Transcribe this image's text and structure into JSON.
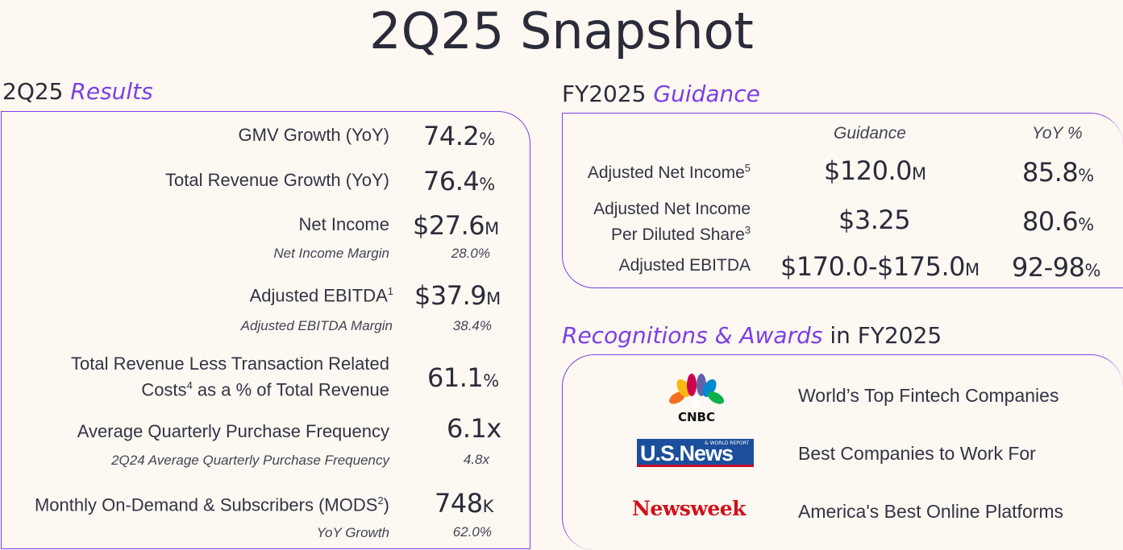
{
  "title": "2Q25 Snapshot",
  "results": {
    "heading_prefix": "2Q25",
    "heading_accent": "Results",
    "gmv_label": "GMV Growth (YoY)",
    "gmv_value": "74.2",
    "gmv_unit": "%",
    "rev_label": "Total Revenue Growth (YoY)",
    "rev_value": "76.4",
    "rev_unit": "%",
    "ni_label": "Net Income",
    "ni_value": "$27.6",
    "ni_unit": "M",
    "nim_label": "Net Income Margin",
    "nim_value": "28.0%",
    "ebitda_label": "Adjusted EBITDA",
    "ebitda_sup": "1",
    "ebitda_value": "$37.9",
    "ebitda_unit": "M",
    "ebitdam_label": "Adjusted EBITDA Margin",
    "ebitdam_value": "38.4%",
    "trl_label_1": "Total Revenue Less Transaction Related",
    "trl_label_2a": "Costs",
    "trl_sup": "4",
    "trl_label_2b": " as a % of Total Revenue",
    "trl_value": "61.1",
    "trl_unit": "%",
    "aqpf_label": "Average Quarterly Purchase Frequency",
    "aqpf_value": "6.1x",
    "aqpf_prev_label": "2Q24 Average Quarterly Purchase Frequency",
    "aqpf_prev_value": "4.8x",
    "mods_label": "Monthly On-Demand & Subscribers (MODS",
    "mods_sup": "2",
    "mods_label_end": ")",
    "mods_value": "748",
    "mods_unit": "K",
    "mods_yoy_label": "YoY Growth",
    "mods_yoy_value": "62.0%"
  },
  "guidance": {
    "heading_prefix": "FY2025",
    "heading_accent": "Guidance",
    "col_guidance": "Guidance",
    "col_yoy": "YoY %",
    "ani_label": "Adjusted Net Income",
    "ani_sup": "5",
    "ani_value": "$120.0",
    "ani_unit": "M",
    "ani_yoy": "85.8",
    "ani_yoy_unit": "%",
    "anips_label_1": "Adjusted Net Income",
    "anips_label_2": "Per Diluted Share",
    "anips_sup": "3",
    "anips_value": "$3.25",
    "anips_yoy": "80.6",
    "anips_yoy_unit": "%",
    "ebitda_label": "Adjusted EBITDA",
    "ebitda_value": "$170.0-$175.0",
    "ebitda_unit": "M",
    "ebitda_yoy": "92-98",
    "ebitda_yoy_unit": "%"
  },
  "awards": {
    "heading_accent": "Recognitions & Awards",
    "heading_suffix": " in FY2025",
    "items": [
      {
        "logo": "CNBC",
        "text": "World’s Top Fintech Companies"
      },
      {
        "logo": "U.S.News",
        "logo_small": "& WORLD REPORT",
        "text": "Best Companies to Work For"
      },
      {
        "logo": "Newsweek",
        "text": "America's Best Online Platforms"
      }
    ]
  }
}
